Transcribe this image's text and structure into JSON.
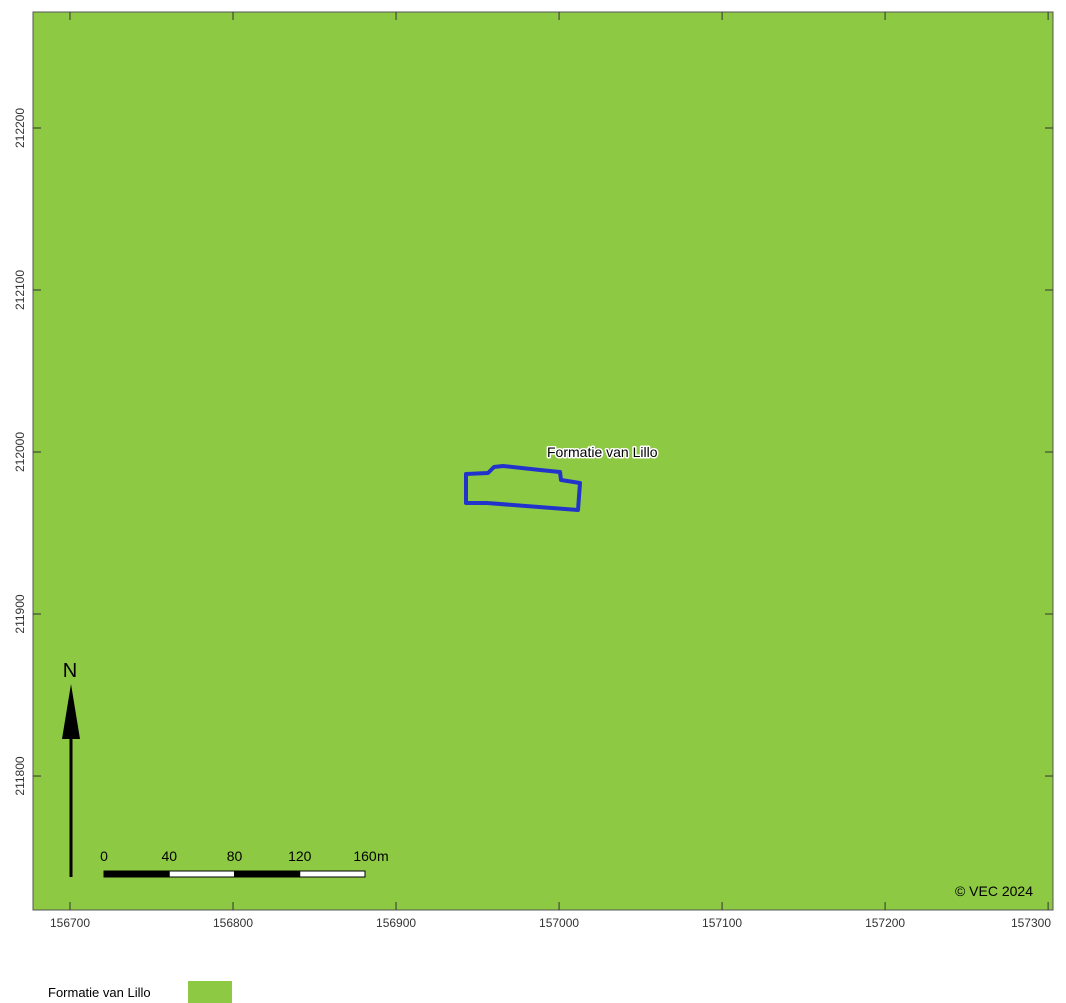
{
  "map": {
    "xlim": [
      156677.3,
      157303
    ],
    "ylim": [
      211717.3,
      212271.6
    ],
    "xticks": [
      156700,
      156800,
      156900,
      157000,
      157100,
      157200,
      157300
    ],
    "yticks": [
      211800,
      211900,
      212000,
      212100,
      212200
    ],
    "fill_color": "#8dc943",
    "outline_color": "#2233cc",
    "feature_label": "Formatie van Lillo",
    "north": "N",
    "scale_bar": {
      "ticks": [
        0,
        40,
        80,
        120,
        160
      ],
      "unit": "m"
    },
    "copyright": "© VEC 2024"
  },
  "legend": {
    "label": "Formatie van Lillo",
    "color": "#8dc943"
  }
}
